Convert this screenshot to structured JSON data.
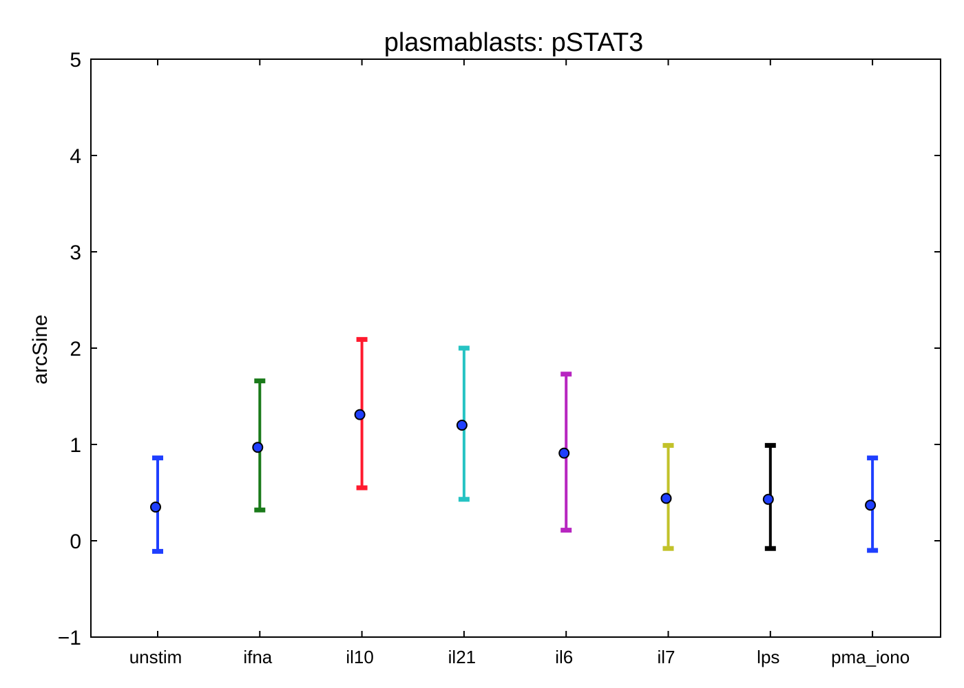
{
  "chart_data": {
    "type": "scatter",
    "title": "plasmablasts: pSTAT3",
    "xlabel": "",
    "ylabel": "arcSine",
    "ylim": [
      -1,
      5
    ],
    "yticks": [
      -1,
      0,
      1,
      2,
      3,
      4,
      5
    ],
    "ytick_labels": [
      "−1",
      "0",
      "1",
      "2",
      "3",
      "4",
      "5"
    ],
    "grid": false,
    "categories": [
      "unstim",
      "ifna",
      "il10",
      "il21",
      "il6",
      "il7",
      "lps",
      "pma_iono"
    ],
    "mean": [
      0.35,
      0.97,
      1.31,
      1.2,
      0.91,
      0.44,
      0.43,
      0.37
    ],
    "lower": [
      -0.11,
      0.32,
      0.55,
      0.43,
      0.11,
      -0.08,
      -0.08,
      -0.1
    ],
    "upper": [
      0.86,
      1.66,
      2.09,
      2.0,
      1.73,
      0.99,
      0.99,
      0.86
    ],
    "bar_colors": [
      "#1f3fff",
      "#1a7a1a",
      "#ff1a2e",
      "#26c3c3",
      "#b726c0",
      "#c2c22a",
      "#000000",
      "#1f3fff"
    ],
    "marker_color": "#1f3fff"
  }
}
